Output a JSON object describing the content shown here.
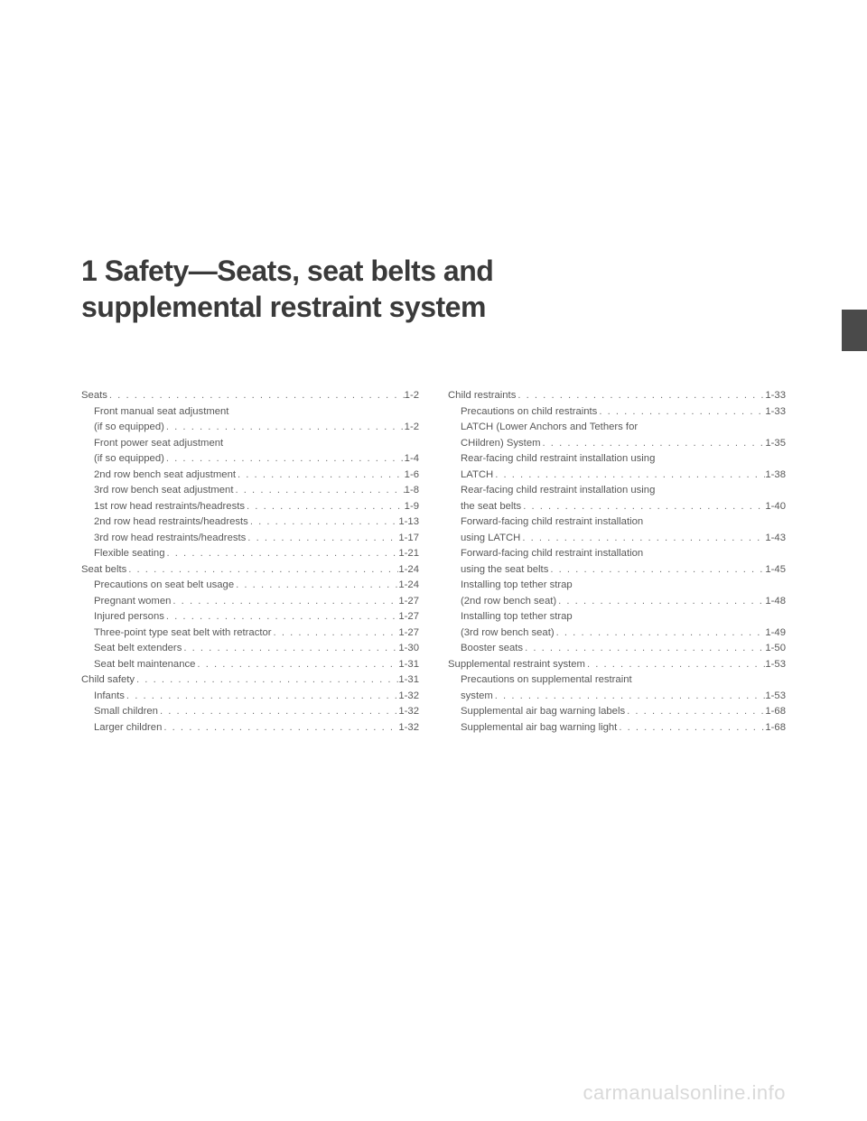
{
  "chapter_number": "1",
  "chapter_title_line1": "1  Safety—Seats, seat belts and",
  "chapter_title_line2": "supplemental restraint system",
  "watermark": "carmanualsonline.info",
  "dots": ". . . . . . . . . . . . . . . . . . . . . . . . . . . . . . . . . . . . . . . . . . . . . . . . . . . . . . . . . . . .",
  "left": [
    {
      "label": "Seats",
      "page": "1-2",
      "level": 0
    },
    {
      "label": "Front manual seat adjustment",
      "page": "",
      "level": 1,
      "nopage": true
    },
    {
      "label": "(if so equipped)",
      "page": "1-2",
      "level": 1,
      "cont": true
    },
    {
      "label": "Front power seat adjustment",
      "page": "",
      "level": 1,
      "nopage": true
    },
    {
      "label": "(if so equipped)",
      "page": "1-4",
      "level": 1,
      "cont": true
    },
    {
      "label": "2nd row bench seat adjustment",
      "page": "1-6",
      "level": 1
    },
    {
      "label": "3rd row bench seat adjustment",
      "page": "1-8",
      "level": 1
    },
    {
      "label": "1st row head restraints/headrests",
      "page": "1-9",
      "level": 1
    },
    {
      "label": "2nd row head restraints/headrests",
      "page": "1-13",
      "level": 1
    },
    {
      "label": "3rd row head restraints/headrests",
      "page": "1-17",
      "level": 1
    },
    {
      "label": "Flexible seating",
      "page": "1-21",
      "level": 1
    },
    {
      "label": "Seat belts",
      "page": "1-24",
      "level": 0
    },
    {
      "label": "Precautions on seat belt usage",
      "page": "1-24",
      "level": 1
    },
    {
      "label": "Pregnant women",
      "page": "1-27",
      "level": 1
    },
    {
      "label": "Injured persons",
      "page": "1-27",
      "level": 1
    },
    {
      "label": "Three-point type seat belt with retractor",
      "page": "1-27",
      "level": 1
    },
    {
      "label": "Seat belt extenders",
      "page": "1-30",
      "level": 1
    },
    {
      "label": "Seat belt maintenance",
      "page": "1-31",
      "level": 1
    },
    {
      "label": "Child safety",
      "page": "1-31",
      "level": 0
    },
    {
      "label": "Infants",
      "page": "1-32",
      "level": 1
    },
    {
      "label": "Small children",
      "page": "1-32",
      "level": 1
    },
    {
      "label": "Larger children",
      "page": "1-32",
      "level": 1
    }
  ],
  "right": [
    {
      "label": "Child restraints",
      "page": "1-33",
      "level": 0
    },
    {
      "label": "Precautions on child restraints",
      "page": "1-33",
      "level": 1
    },
    {
      "label": "LATCH (Lower Anchors and Tethers for",
      "page": "",
      "level": 1,
      "nopage": true
    },
    {
      "label": "CHildren) System",
      "page": "1-35",
      "level": 1,
      "cont": true
    },
    {
      "label": "Rear-facing child restraint installation using",
      "page": "",
      "level": 1,
      "nopage": true
    },
    {
      "label": "LATCH",
      "page": "1-38",
      "level": 1,
      "cont": true
    },
    {
      "label": "Rear-facing child restraint installation using",
      "page": "",
      "level": 1,
      "nopage": true
    },
    {
      "label": "the seat belts",
      "page": "1-40",
      "level": 1,
      "cont": true
    },
    {
      "label": "Forward-facing child restraint installation",
      "page": "",
      "level": 1,
      "nopage": true
    },
    {
      "label": "using LATCH",
      "page": "1-43",
      "level": 1,
      "cont": true
    },
    {
      "label": "Forward-facing child restraint installation",
      "page": "",
      "level": 1,
      "nopage": true
    },
    {
      "label": "using the seat belts",
      "page": "1-45",
      "level": 1,
      "cont": true
    },
    {
      "label": "Installing top tether strap",
      "page": "",
      "level": 1,
      "nopage": true
    },
    {
      "label": "(2nd row bench seat)",
      "page": "1-48",
      "level": 1,
      "cont": true
    },
    {
      "label": "Installing top tether strap",
      "page": "",
      "level": 1,
      "nopage": true
    },
    {
      "label": "(3rd row bench seat)",
      "page": "1-49",
      "level": 1,
      "cont": true
    },
    {
      "label": "Booster seats",
      "page": "1-50",
      "level": 1
    },
    {
      "label": "Supplemental restraint system",
      "page": "1-53",
      "level": 0
    },
    {
      "label": "Precautions on supplemental restraint",
      "page": "",
      "level": 1,
      "nopage": true
    },
    {
      "label": "system",
      "page": "1-53",
      "level": 1,
      "cont": true
    },
    {
      "label": "Supplemental air bag warning labels",
      "page": "1-68",
      "level": 1
    },
    {
      "label": "Supplemental air bag warning light",
      "page": "1-68",
      "level": 1
    }
  ]
}
